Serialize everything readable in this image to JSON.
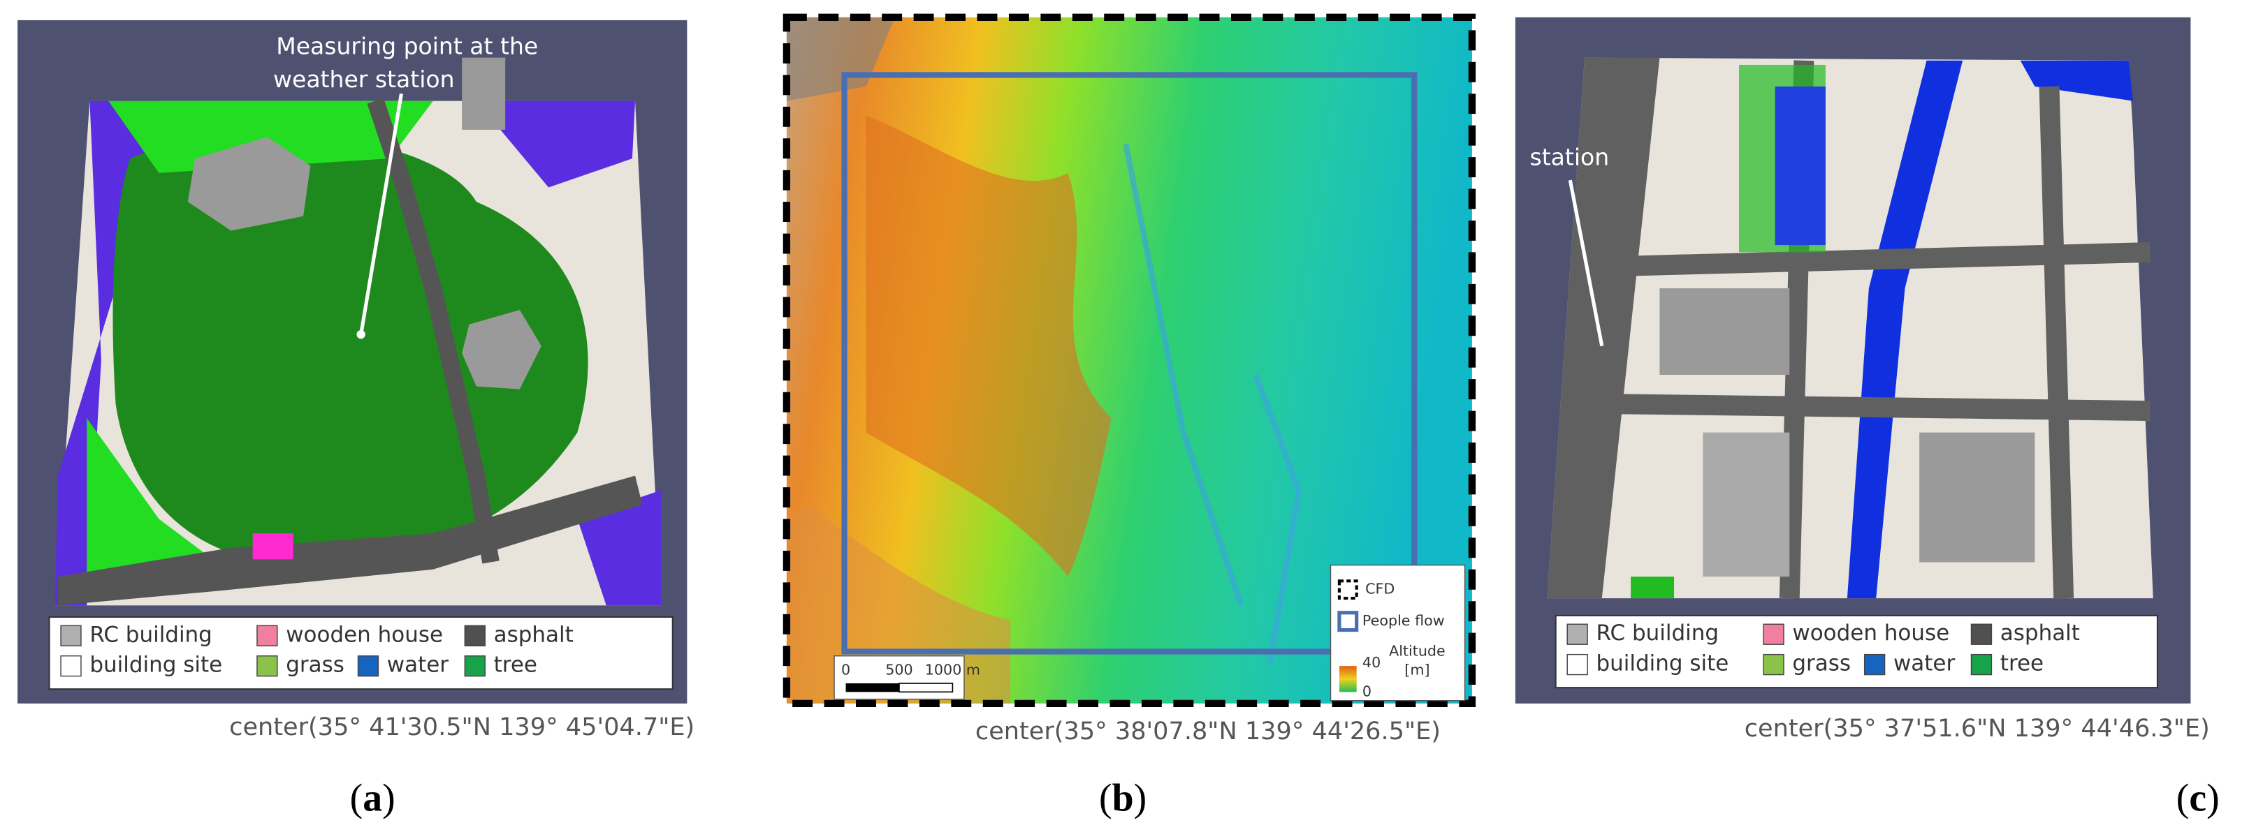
{
  "panels": [
    {
      "annotation": [
        "Measuring point at the",
        "weather station"
      ],
      "legend": [
        "RC building",
        "wooden house",
        "asphalt",
        "building site",
        "grass",
        "water",
        "tree"
      ],
      "center": "center(35°  41'30.5\"N 139°  45'04.7\"E)",
      "caption_open": "(",
      "caption_letter": "a",
      "caption_close": ")"
    },
    {
      "scale_labels": [
        "0",
        "500",
        "1000 m"
      ],
      "legend": [
        "CFD",
        "People flow"
      ],
      "colorbar": {
        "title": [
          "Altitude",
          "[m]"
        ],
        "ticks": [
          40,
          0
        ]
      },
      "center": "center(35°  38'07.8\"N 139°  44'26.5\"E)",
      "caption_open": "(",
      "caption_letter": "b",
      "caption_close": ")"
    },
    {
      "annotation": [
        "station"
      ],
      "legend": [
        "RC building",
        "wooden house",
        "asphalt",
        "building site",
        "grass",
        "water",
        "tree"
      ],
      "center": "center(35°  37'51.6\"N 139°  44'46.3\"E)",
      "caption_open": "(",
      "caption_letter": "c",
      "caption_close": ")"
    }
  ]
}
